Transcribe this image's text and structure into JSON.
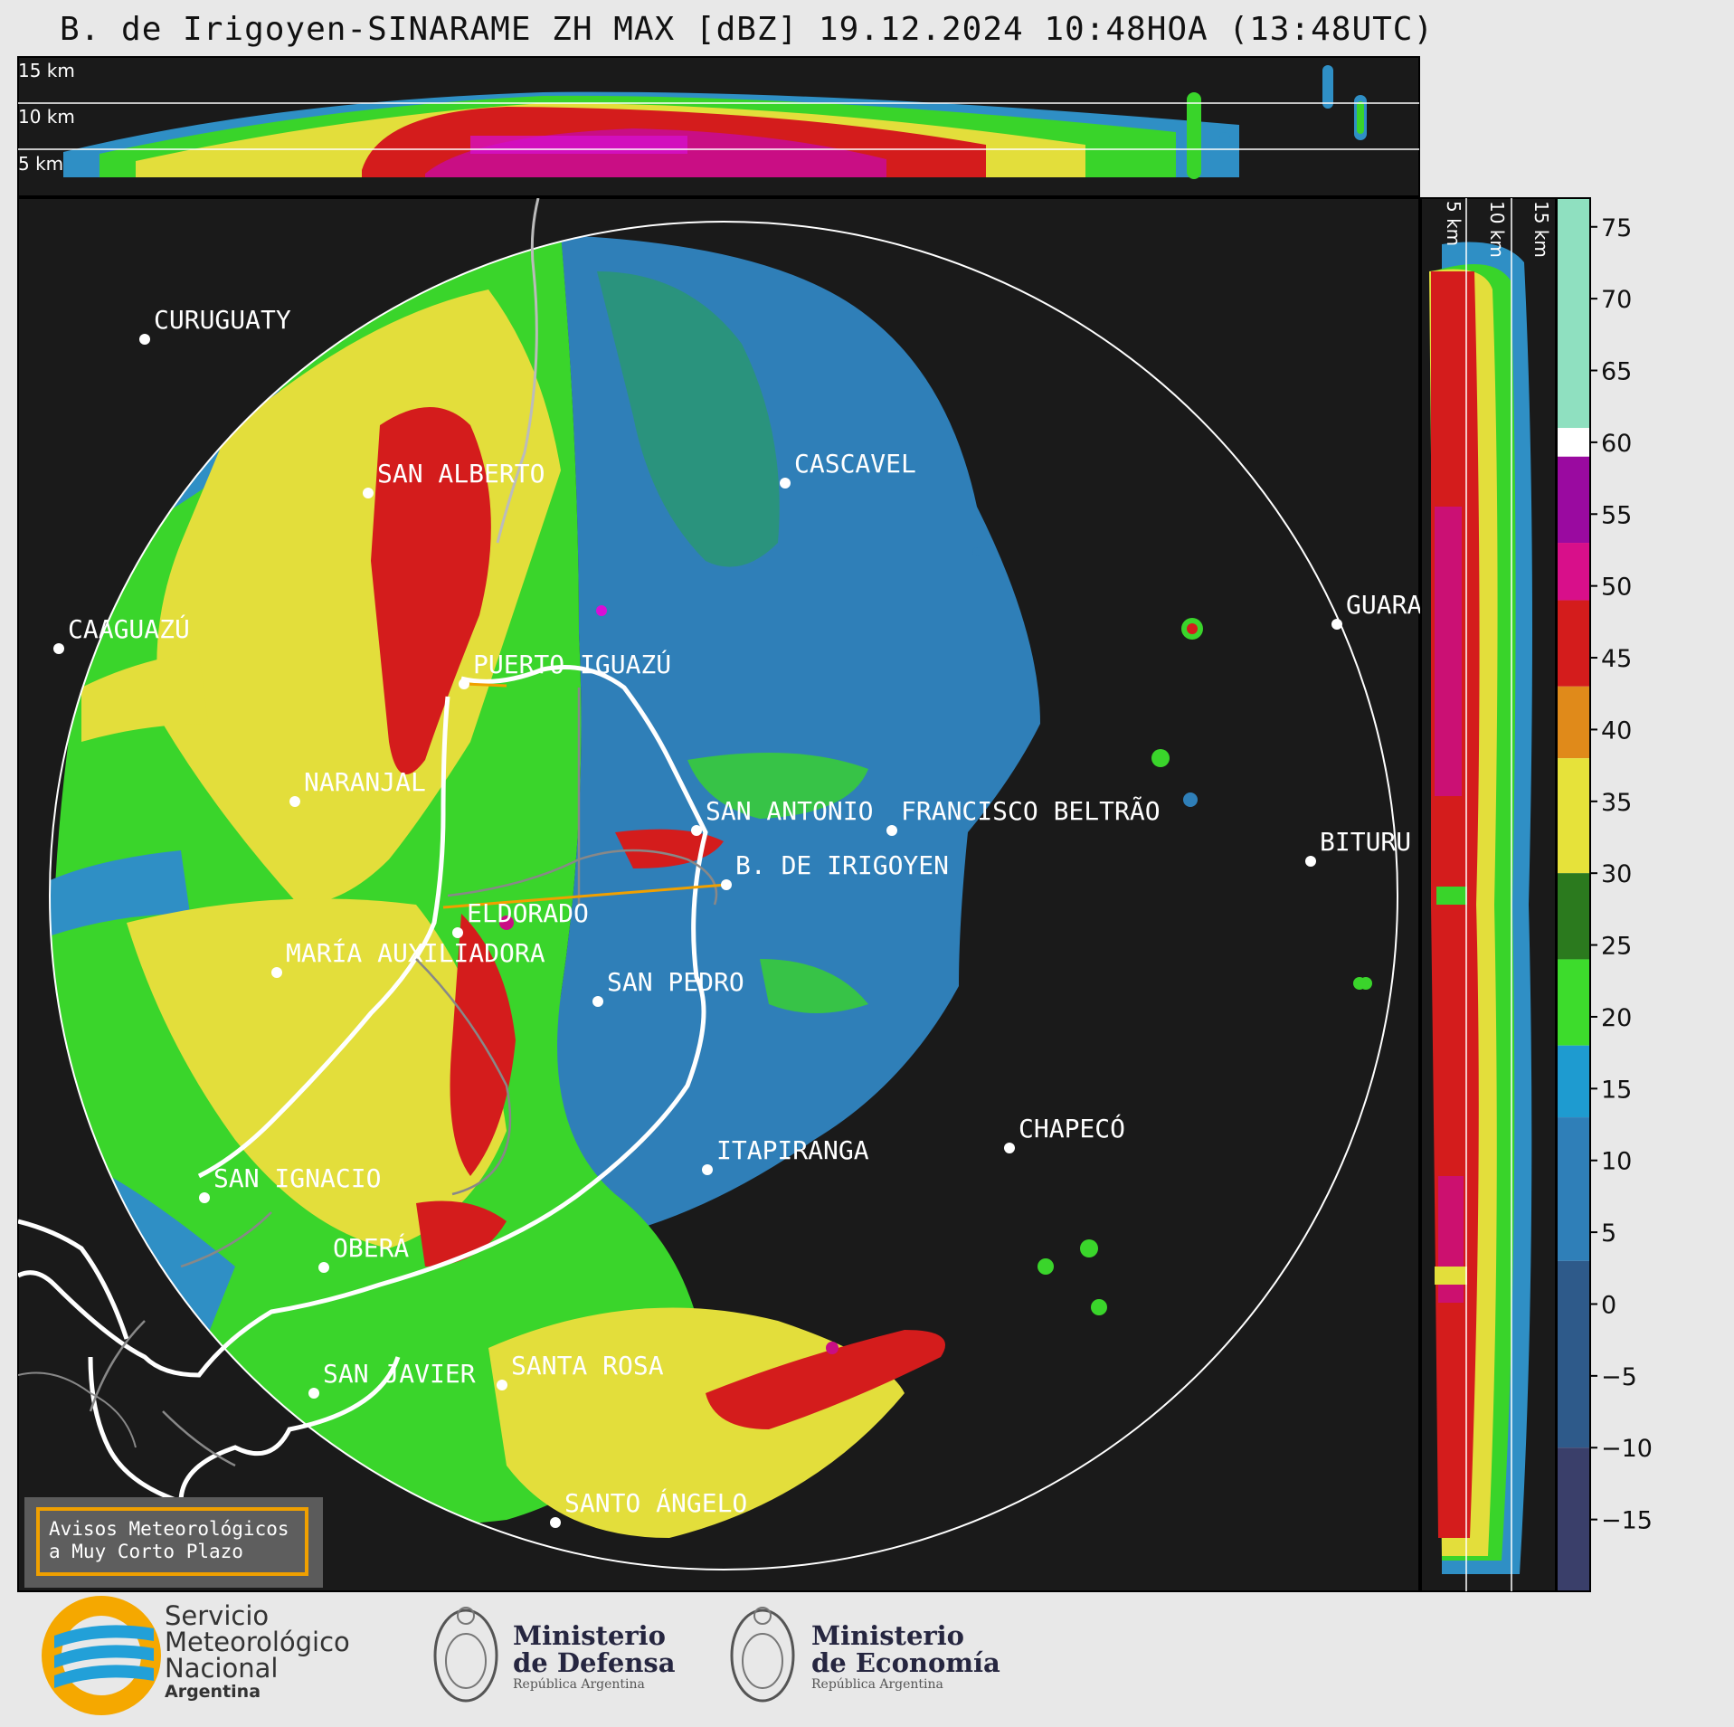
{
  "title": "B. de Irigoyen-SINARAME ZH MAX [dBZ] 19.12.2024 10:48HOA (13:48UTC)",
  "height_labels": [
    "15 km",
    "10 km",
    "5 km"
  ],
  "side_height_labels": [
    "5 km",
    "10 km",
    "15 km"
  ],
  "colorbar": {
    "ticks": [
      "75",
      "70",
      "65",
      "60",
      "55",
      "50",
      "45",
      "40",
      "35",
      "30",
      "25",
      "20",
      "15",
      "10",
      "5",
      "0",
      "−5",
      "−10",
      "−15"
    ],
    "colors": {
      "very_low": "#3a3f6a",
      "low": "#2f7fb8",
      "blue": "#1e9bd0",
      "green": "#3ddc2c",
      "dark_green": "#2b7a1e",
      "yellow": "#e6e23a",
      "orange": "#e08a1a",
      "red": "#d41c1c",
      "magenta": "#d80f8a",
      "purple": "#9a0aa0",
      "white": "#ffffff",
      "mint": "#8fe0c0"
    }
  },
  "cities": [
    {
      "name": "CURUGUATY"
    },
    {
      "name": "SAN ALBERTO"
    },
    {
      "name": "CASCAVEL"
    },
    {
      "name": "CAAGUAZÚ"
    },
    {
      "name": "GUARA"
    },
    {
      "name": "PUERTO IGUAZÚ"
    },
    {
      "name": "NARANJAL"
    },
    {
      "name": "SAN ANTONIO"
    },
    {
      "name": "FRANCISCO BELTRÃO"
    },
    {
      "name": "B. DE IRIGOYEN"
    },
    {
      "name": "BITURU"
    },
    {
      "name": "ELDORADO"
    },
    {
      "name": "MARÍA AUXILIADORA"
    },
    {
      "name": "SAN PEDRO"
    },
    {
      "name": "CHAPECÓ"
    },
    {
      "name": "ITAPIRANGA"
    },
    {
      "name": "SAN IGNACIO"
    },
    {
      "name": "OBERÁ"
    },
    {
      "name": "SAN JAVIER"
    },
    {
      "name": "SANTA ROSA"
    },
    {
      "name": "SANTO ÁNGELO"
    }
  ],
  "warning_box": {
    "line1": "Avisos Meteorológicos",
    "line2": "a Muy Corto Plazo"
  },
  "logos": {
    "smn": {
      "line1": "Servicio",
      "line2": "Meteorológico",
      "line3": "Nacional",
      "line4": "Argentina"
    },
    "defensa": {
      "line1": "Ministerio",
      "line2": "de Defensa",
      "line3": "República Argentina"
    },
    "economia": {
      "line1": "Ministerio",
      "line2": "de Economía",
      "line3": "República Argentina"
    }
  }
}
